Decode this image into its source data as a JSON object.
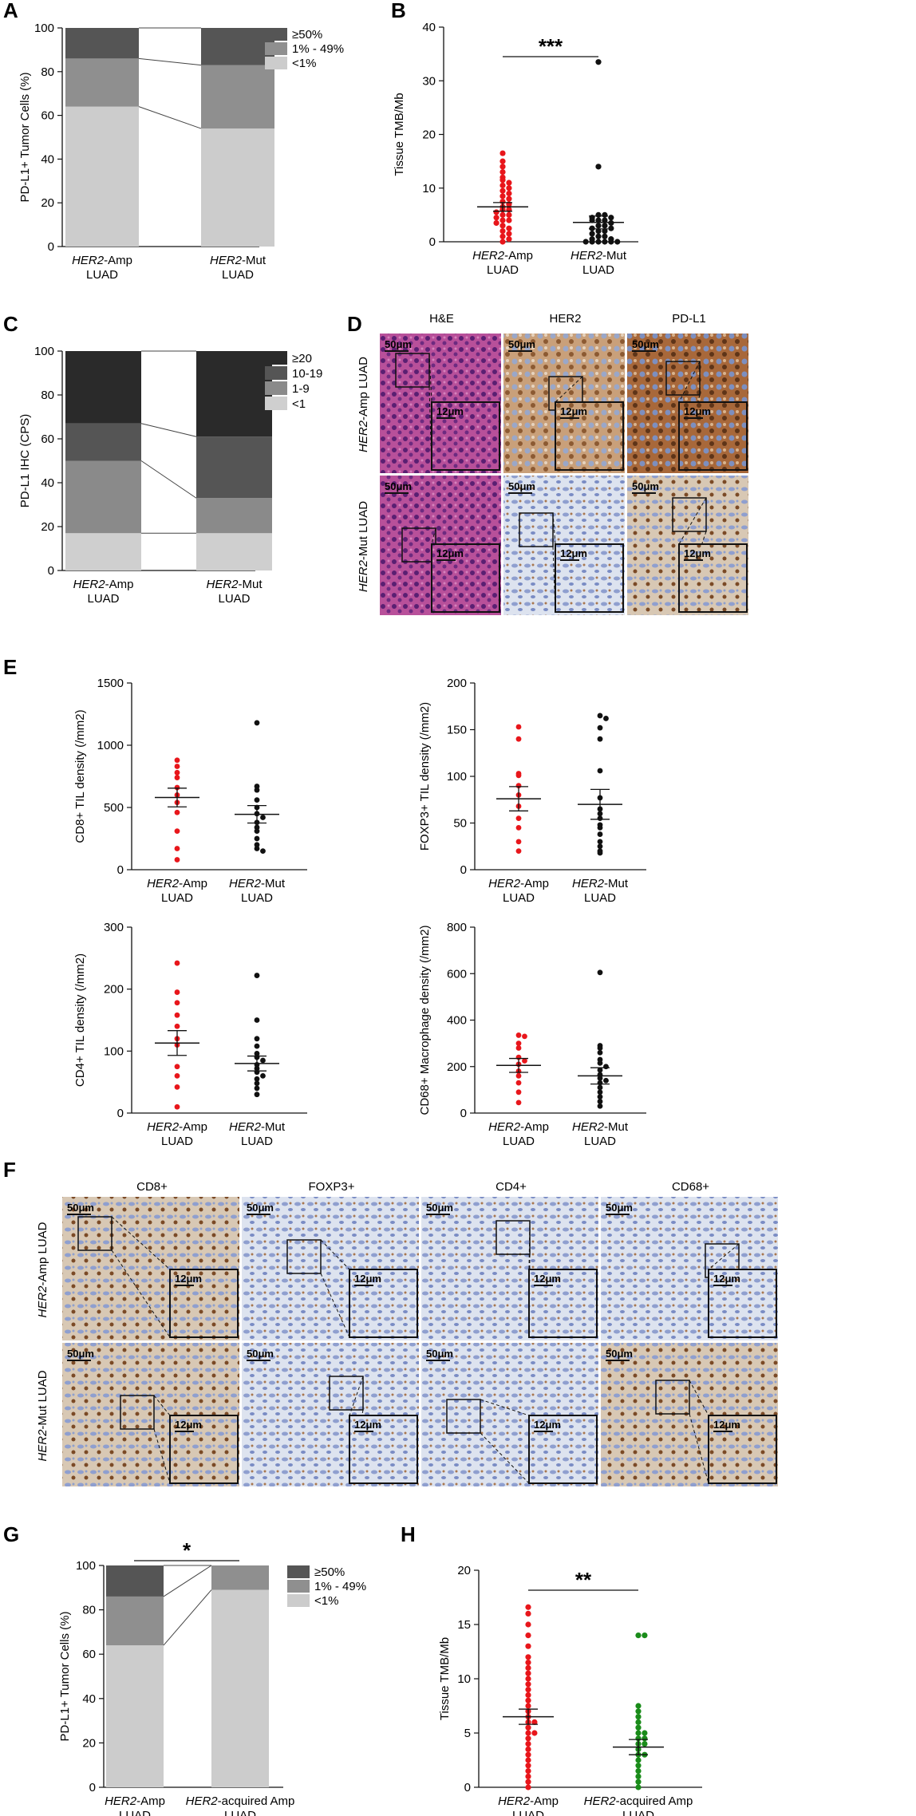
{
  "panels": {
    "A": "A",
    "B": "B",
    "C": "C",
    "D": "D",
    "E": "E",
    "F": "F",
    "G": "G",
    "H": "H"
  },
  "colors": {
    "red": "#e8161b",
    "black": "#111111",
    "green": "#1a8c1a",
    "dark": "#3a3a3a",
    "g50": "#555555",
    "g1": "#8f8f8f",
    "glow": "#cccccc",
    "g1019": "#555555",
    "g19": "#8a8a8a",
    "g1c": "#cfcfcf",
    "g20": "#2a2a2a"
  },
  "chart_data": [
    {
      "id": "A",
      "type": "bar",
      "stacked": true,
      "ylabel": "PD-L1+ Tumor Cells (%)",
      "ylim": [
        0,
        100
      ],
      "yticks": [
        0,
        20,
        40,
        60,
        80,
        100
      ],
      "categories": [
        {
          "gene": "HER2",
          "rest": "-Amp",
          "line2": "LUAD"
        },
        {
          "gene": "HER2",
          "rest": "-Mut",
          "line2": "LUAD"
        }
      ],
      "series": [
        {
          "name": "<1%",
          "values": [
            64,
            54
          ]
        },
        {
          "name": "1% - 49%",
          "values": [
            22,
            29
          ]
        },
        {
          "name": "≥50%",
          "values": [
            14,
            17
          ]
        }
      ],
      "legend": [
        "≥50%",
        "1% - 49%",
        "<1%"
      ]
    },
    {
      "id": "B",
      "type": "scatter",
      "ylabel": "Tissue TMB/Mb",
      "ylim": [
        0,
        40
      ],
      "yticks": [
        0,
        10,
        20,
        30,
        40
      ],
      "significance": "***",
      "categories": [
        {
          "gene": "HER2",
          "rest": "-Amp",
          "line2": "LUAD"
        },
        {
          "gene": "HER2",
          "rest": "-Mut",
          "line2": "LUAD"
        }
      ],
      "series": [
        {
          "mean": 6.5,
          "sem": 0.8,
          "values": [
            16.5,
            15,
            14,
            13,
            12,
            11.5,
            11,
            10.5,
            10,
            9.5,
            9,
            8.5,
            8,
            7.5,
            7,
            6.5,
            6,
            6,
            5.5,
            5,
            5,
            4.5,
            4,
            4,
            3.5,
            3,
            2.5,
            2,
            1.5,
            1,
            0.5,
            0
          ]
        },
        {
          "mean": 3.6,
          "sem": 1.2,
          "values": [
            33.5,
            14,
            5,
            5,
            4.5,
            4.5,
            4,
            4,
            4,
            3.5,
            3,
            3,
            2.5,
            2.5,
            2,
            2,
            1.5,
            1,
            1,
            0.5,
            0.5,
            0,
            0,
            0,
            0,
            0,
            0
          ]
        }
      ]
    },
    {
      "id": "C",
      "type": "bar",
      "stacked": true,
      "ylabel": "PD-L1 IHC (CPS)",
      "ylim": [
        0,
        100
      ],
      "yticks": [
        0,
        20,
        40,
        60,
        80,
        100
      ],
      "categories": [
        {
          "gene": "HER2",
          "rest": "-Amp",
          "line2": "LUAD"
        },
        {
          "gene": "HER2",
          "rest": "-Mut",
          "line2": "LUAD"
        }
      ],
      "series": [
        {
          "name": "<1",
          "values": [
            17,
            17
          ]
        },
        {
          "name": "1-9",
          "values": [
            33,
            16
          ]
        },
        {
          "name": "10-19",
          "values": [
            17,
            28
          ]
        },
        {
          "name": "≥20",
          "values": [
            33,
            39
          ]
        }
      ],
      "legend": [
        "≥20",
        "10-19",
        "1-9",
        "<1"
      ]
    },
    {
      "id": "E1",
      "type": "scatter",
      "ylabel": "CD8+ TIL density (/mm2)",
      "ylim": [
        0,
        1500
      ],
      "yticks": [
        0,
        500,
        1000,
        1500
      ],
      "categories": [
        {
          "gene": "HER2",
          "rest": "-Amp",
          "line2": "LUAD"
        },
        {
          "gene": "HER2",
          "rest": "-Mut",
          "line2": "LUAD"
        }
      ],
      "series": [
        {
          "mean": 580,
          "sem": 75,
          "values": [
            880,
            830,
            780,
            740,
            660,
            600,
            540,
            460,
            310,
            170,
            80
          ]
        },
        {
          "mean": 445,
          "sem": 70,
          "values": [
            1180,
            670,
            640,
            560,
            500,
            450,
            420,
            380,
            340,
            310,
            250,
            200,
            170,
            150
          ]
        }
      ]
    },
    {
      "id": "E2",
      "type": "scatter",
      "ylabel": "FOXP3+ TIL density (/mm2)",
      "ylim": [
        0,
        200
      ],
      "yticks": [
        0,
        50,
        100,
        150,
        200
      ],
      "categories": [
        {
          "gene": "HER2",
          "rest": "-Amp",
          "line2": "LUAD"
        },
        {
          "gene": "HER2",
          "rest": "-Mut",
          "line2": "LUAD"
        }
      ],
      "series": [
        {
          "mean": 76,
          "sem": 13,
          "values": [
            153,
            140,
            103,
            101,
            90,
            80,
            68,
            55,
            45,
            30,
            20
          ]
        },
        {
          "mean": 70,
          "sem": 16,
          "values": [
            165,
            162,
            152,
            140,
            106,
            77,
            65,
            60,
            55,
            48,
            45,
            38,
            30,
            25,
            20,
            18
          ]
        }
      ]
    },
    {
      "id": "E3",
      "type": "scatter",
      "ylabel": "CD4+ TIL density (/mm2)",
      "ylim": [
        0,
        300
      ],
      "yticks": [
        0,
        100,
        200,
        300
      ],
      "categories": [
        {
          "gene": "HER2",
          "rest": "-Amp",
          "line2": "LUAD"
        },
        {
          "gene": "HER2",
          "rest": "-Mut",
          "line2": "LUAD"
        }
      ],
      "series": [
        {
          "mean": 113,
          "sem": 20,
          "values": [
            242,
            195,
            178,
            158,
            140,
            120,
            110,
            75,
            60,
            42,
            10
          ]
        },
        {
          "mean": 80,
          "sem": 12,
          "values": [
            222,
            150,
            120,
            108,
            96,
            90,
            85,
            78,
            72,
            66,
            60,
            55,
            48,
            40,
            30
          ]
        }
      ]
    },
    {
      "id": "E4",
      "type": "scatter",
      "ylabel": "CD68+ Macrophage density (/mm2)",
      "ylim": [
        0,
        800
      ],
      "yticks": [
        0,
        200,
        400,
        600,
        800
      ],
      "categories": [
        {
          "gene": "HER2",
          "rest": "-Amp",
          "line2": "LUAD"
        },
        {
          "gene": "HER2",
          "rest": "-Mut",
          "line2": "LUAD"
        }
      ],
      "series": [
        {
          "mean": 205,
          "sem": 30,
          "values": [
            335,
            330,
            300,
            280,
            240,
            225,
            210,
            180,
            160,
            130,
            90,
            45
          ]
        },
        {
          "mean": 160,
          "sem": 35,
          "values": [
            605,
            290,
            280,
            260,
            230,
            215,
            200,
            185,
            165,
            150,
            140,
            130,
            110,
            90,
            70,
            50,
            30
          ]
        }
      ]
    },
    {
      "id": "G",
      "type": "bar",
      "stacked": true,
      "ylabel": "PD-L1+ Tumor Cells (%)",
      "ylim": [
        0,
        100
      ],
      "yticks": [
        0,
        20,
        40,
        60,
        80,
        100
      ],
      "significance": "*",
      "categories": [
        {
          "gene": "HER2",
          "rest": "-Amp",
          "line2": "LUAD"
        },
        {
          "gene": "HER2",
          "rest": "-acquired Amp",
          "line2": "LUAD"
        }
      ],
      "series": [
        {
          "name": "<1%",
          "values": [
            64,
            89
          ]
        },
        {
          "name": "1% - 49%",
          "values": [
            22,
            11
          ]
        },
        {
          "name": "≥50%",
          "values": [
            14,
            0
          ]
        }
      ],
      "legend": [
        "≥50%",
        "1% - 49%",
        "<1%"
      ]
    },
    {
      "id": "H",
      "type": "scatter",
      "ylabel": "Tissue TMB/Mb",
      "ylim": [
        0,
        20
      ],
      "yticks": [
        0,
        5,
        10,
        15,
        20
      ],
      "significance": "**",
      "categories": [
        {
          "gene": "HER2",
          "rest": "-Amp",
          "line2": "LUAD"
        },
        {
          "gene": "HER2",
          "rest": "-acquired Amp",
          "line2": "LUAD"
        }
      ],
      "series": [
        {
          "mean": 6.5,
          "sem": 0.7,
          "values": [
            16.6,
            16,
            15,
            14,
            13,
            12,
            11.5,
            11,
            10.5,
            10,
            9.5,
            9,
            8.5,
            8,
            7.5,
            7,
            6.5,
            6,
            6,
            5.5,
            5,
            5,
            4.5,
            4,
            3.5,
            3,
            2.5,
            2,
            1.5,
            1,
            0.5,
            0
          ]
        },
        {
          "mean": 3.7,
          "sem": 0.7,
          "values": [
            14,
            14,
            7.5,
            7,
            6.5,
            6,
            5.5,
            5,
            5,
            4.5,
            4.5,
            4,
            4,
            3.5,
            3,
            3,
            2.5,
            2,
            1.5,
            1,
            0.5,
            0
          ]
        }
      ]
    }
  ],
  "micro_D": {
    "columns": [
      "H&E",
      "HER2",
      "PD-L1"
    ],
    "rows": [
      {
        "gene": "HER2",
        "rest": "-Amp LUAD"
      },
      {
        "gene": "HER2",
        "rest": "-Mut LUAD"
      }
    ],
    "scale_big": "50μm",
    "scale_small": "12μm"
  },
  "micro_F": {
    "columns": [
      "CD8+",
      "FOXP3+",
      "CD4+",
      "CD68+"
    ],
    "rows": [
      {
        "gene": "HER2",
        "rest": "-Amp LUAD"
      },
      {
        "gene": "HER2",
        "rest": "-Mut LUAD"
      }
    ],
    "scale_big": "50μm",
    "scale_small": "12μm"
  }
}
